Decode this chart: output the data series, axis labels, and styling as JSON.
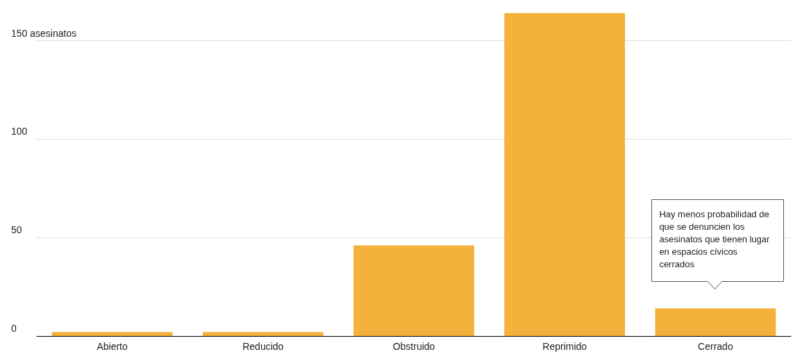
{
  "chart_data": {
    "type": "bar",
    "categories": [
      "Abierto",
      "Reducido",
      "Obstruido",
      "Reprimido",
      "Cerrado"
    ],
    "values": [
      2,
      2,
      46,
      164,
      14
    ],
    "color": "#f4b13c",
    "ylim": [
      0,
      165
    ],
    "yticks": [
      0,
      50,
      100,
      {
        "value": 150,
        "label": "150 asesinatos"
      }
    ],
    "grid": "y",
    "annotations": [
      "Hay menos probabilidad de que se denuncien los asesinatos que tienen lugar en espacios cívicos cerrados"
    ]
  }
}
